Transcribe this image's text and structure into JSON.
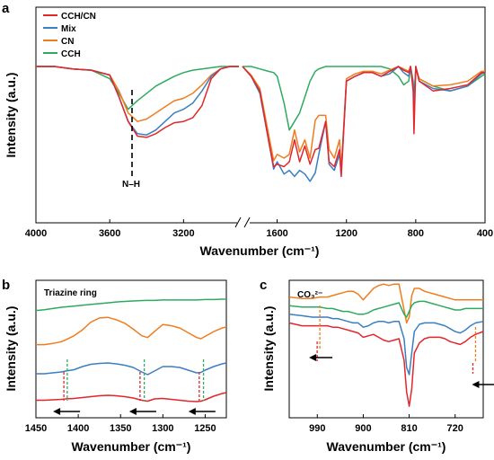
{
  "colors": {
    "CCH/CN": "#e3262b",
    "Mix": "#3a7fc1",
    "CN": "#f07c1d",
    "CCH": "#2eaa5f"
  },
  "chart_data": [
    {
      "panel": "a",
      "type": "line",
      "xlabel": "Wavenumber (cm⁻¹)",
      "ylabel": "Intensity (a.u.)",
      "x_ticks": [
        "4000",
        "3600",
        "3200",
        "1600",
        "1200",
        "800",
        "400"
      ],
      "x_break": [
        2900,
        1800
      ],
      "legend": [
        "CCH/CN",
        "Mix",
        "CN",
        "CCH"
      ],
      "legend_position": "top-left",
      "annotation": "N–H",
      "series": [
        {
          "name": "CCH/CN",
          "x": [
            4000,
            3900,
            3800,
            3700,
            3600,
            3550,
            3500,
            3450,
            3400,
            3350,
            3300,
            3250,
            3200,
            3150,
            3100,
            3050,
            3000,
            2950,
            2900,
            1800,
            1750,
            1700,
            1650,
            1620,
            1600,
            1560,
            1530,
            1500,
            1470,
            1440,
            1410,
            1380,
            1360,
            1320,
            1300,
            1270,
            1240,
            1230,
            1200,
            1150,
            1100,
            1050,
            1000,
            950,
            900,
            870,
            840,
            830,
            815,
            810,
            800,
            780,
            700,
            600,
            500,
            420,
            400
          ],
          "y": [
            100,
            100,
            98,
            97,
            93,
            75,
            55,
            43,
            42,
            45,
            50,
            54,
            55,
            58,
            68,
            90,
            98,
            100,
            100,
            100,
            92,
            80,
            40,
            18,
            20,
            18,
            22,
            40,
            22,
            35,
            20,
            32,
            33,
            55,
            22,
            18,
            32,
            10,
            88,
            92,
            95,
            95,
            92,
            96,
            100,
            97,
            95,
            100,
            80,
            45,
            100,
            88,
            80,
            82,
            85,
            95,
            95
          ]
        },
        {
          "name": "Mix",
          "x": [
            4000,
            3900,
            3800,
            3700,
            3600,
            3550,
            3500,
            3450,
            3400,
            3350,
            3300,
            3250,
            3200,
            3150,
            3100,
            3050,
            3000,
            2950,
            2900,
            1800,
            1750,
            1700,
            1650,
            1620,
            1600,
            1560,
            1530,
            1500,
            1470,
            1440,
            1410,
            1380,
            1360,
            1320,
            1300,
            1270,
            1240,
            1230,
            1200,
            1150,
            1100,
            1050,
            1000,
            950,
            900,
            870,
            840,
            830,
            815,
            810,
            800,
            780,
            700,
            600,
            500,
            420,
            400
          ],
          "y": [
            100,
            100,
            98,
            97,
            93,
            75,
            55,
            45,
            44,
            48,
            55,
            62,
            65,
            70,
            80,
            92,
            98,
            100,
            100,
            100,
            92,
            78,
            40,
            16,
            22,
            12,
            15,
            10,
            15,
            12,
            6,
            13,
            28,
            55,
            20,
            15,
            28,
            12,
            88,
            92,
            95,
            95,
            92,
            94,
            100,
            95,
            92,
            100,
            85,
            65,
            100,
            88,
            82,
            80,
            84,
            94,
            95
          ]
        },
        {
          "name": "CN",
          "x": [
            4000,
            3900,
            3800,
            3700,
            3600,
            3550,
            3500,
            3450,
            3400,
            3350,
            3300,
            3250,
            3200,
            3150,
            3100,
            3050,
            3000,
            2950,
            2900,
            1800,
            1750,
            1700,
            1650,
            1620,
            1600,
            1560,
            1530,
            1500,
            1470,
            1440,
            1410,
            1380,
            1360,
            1320,
            1300,
            1270,
            1240,
            1230,
            1200,
            1150,
            1100,
            1050,
            1000,
            950,
            900,
            870,
            840,
            830,
            815,
            810,
            800,
            780,
            700,
            600,
            500,
            420,
            400
          ],
          "y": [
            100,
            100,
            98,
            97,
            93,
            80,
            62,
            55,
            57,
            62,
            67,
            72,
            74,
            78,
            85,
            93,
            98,
            100,
            100,
            100,
            93,
            82,
            45,
            23,
            28,
            25,
            28,
            48,
            30,
            40,
            25,
            56,
            60,
            60,
            32,
            25,
            40,
            15,
            90,
            94,
            96,
            96,
            94,
            97,
            100,
            98,
            96,
            100,
            85,
            60,
            100,
            90,
            84,
            85,
            88,
            96,
            96
          ]
        },
        {
          "name": "CCH",
          "x": [
            4000,
            3900,
            3800,
            3700,
            3600,
            3550,
            3500,
            3450,
            3400,
            3350,
            3300,
            3250,
            3200,
            3150,
            3100,
            3050,
            3000,
            2950,
            2900,
            1800,
            1750,
            1700,
            1650,
            1620,
            1600,
            1560,
            1530,
            1500,
            1470,
            1440,
            1410,
            1380,
            1360,
            1320,
            1300,
            1270,
            1240,
            1230,
            1200,
            1150,
            1100,
            1050,
            1000,
            950,
            900,
            870,
            840,
            830,
            815,
            810,
            800,
            780,
            700,
            600,
            500,
            420,
            400
          ],
          "y": [
            100,
            100,
            98,
            97,
            90,
            78,
            65,
            72,
            78,
            84,
            88,
            92,
            95,
            97,
            98,
            99,
            100,
            100,
            100,
            100,
            100,
            98,
            96,
            95,
            92,
            70,
            48,
            55,
            62,
            75,
            88,
            96,
            98,
            100,
            100,
            100,
            100,
            100,
            100,
            100,
            100,
            100,
            100,
            98,
            92,
            85,
            88,
            100,
            88,
            75,
            98,
            90,
            84,
            80,
            84,
            92,
            94
          ]
        }
      ]
    },
    {
      "panel": "b",
      "type": "line",
      "annotation": "Triazine ring",
      "xlabel": "Wavenumber (cm⁻¹)",
      "ylabel": "Intensity (a.u.)",
      "x_ticks": [
        "1450",
        "1400",
        "1350",
        "1300",
        "1250"
      ],
      "xlim": [
        1450,
        1225
      ],
      "series": [
        {
          "name": "CCH/CN",
          "x": [
            1450,
            1440,
            1430,
            1420,
            1415,
            1405,
            1395,
            1385,
            1375,
            1365,
            1355,
            1345,
            1335,
            1325,
            1318,
            1310,
            1300,
            1290,
            1280,
            1270,
            1260,
            1255,
            1250,
            1240,
            1230,
            1225
          ],
          "y": [
            5,
            5,
            6,
            7,
            8,
            9,
            11,
            13,
            15,
            16,
            15,
            13,
            10,
            5,
            3,
            8,
            9,
            7,
            5,
            3,
            2,
            3,
            6,
            14,
            20,
            22
          ]
        },
        {
          "name": "Mix",
          "x": [
            1450,
            1440,
            1430,
            1420,
            1415,
            1405,
            1395,
            1385,
            1375,
            1365,
            1355,
            1345,
            1335,
            1325,
            1318,
            1310,
            1300,
            1290,
            1280,
            1270,
            1260,
            1255,
            1250,
            1240,
            1230,
            1225
          ],
          "y": [
            24,
            24,
            26,
            28,
            30,
            33,
            40,
            45,
            47,
            48,
            46,
            43,
            38,
            28,
            22,
            30,
            40,
            40,
            38,
            32,
            26,
            27,
            32,
            40,
            46,
            48
          ]
        },
        {
          "name": "CN",
          "x": [
            1450,
            1440,
            1430,
            1420,
            1415,
            1405,
            1395,
            1385,
            1375,
            1365,
            1355,
            1345,
            1335,
            1325,
            1318,
            1310,
            1300,
            1290,
            1280,
            1270,
            1260,
            1255,
            1250,
            1240,
            1230,
            1225
          ],
          "y": [
            40,
            40,
            42,
            45,
            48,
            55,
            65,
            78,
            85,
            86,
            82,
            76,
            66,
            55,
            52,
            62,
            74,
            72,
            68,
            60,
            52,
            50,
            54,
            62,
            68,
            70
          ]
        },
        {
          "name": "CCH",
          "x": [
            1450,
            1440,
            1430,
            1420,
            1410,
            1400,
            1390,
            1380,
            1370,
            1360,
            1350,
            1340,
            1330,
            1320,
            1310,
            1300,
            1290,
            1280,
            1270,
            1260,
            1250,
            1240,
            1230,
            1225
          ],
          "y": [
            72,
            74,
            77,
            80,
            82,
            84,
            86,
            88,
            90,
            92,
            94,
            95,
            96,
            97,
            97,
            98,
            98,
            98,
            98,
            98,
            99,
            99,
            100,
            100
          ]
        }
      ]
    },
    {
      "panel": "c",
      "type": "line",
      "annotation": "CO₃²⁻",
      "xlabel": "Wavenumber (cm⁻¹)",
      "ylabel": "Intensity (a.u.)",
      "x_ticks": [
        "990",
        "900",
        "810",
        "720"
      ],
      "xlim": [
        1045,
        665
      ],
      "series": [
        {
          "name": "CCH/CN",
          "x": [
            1045,
            1020,
            1000,
            985,
            970,
            960,
            950,
            940,
            930,
            920,
            910,
            900,
            890,
            880,
            870,
            860,
            850,
            840,
            830,
            820,
            815,
            810,
            805,
            800,
            790,
            780,
            770,
            760,
            750,
            740,
            730,
            720,
            710,
            700,
            690,
            680,
            665
          ],
          "y": [
            66,
            64,
            64,
            64,
            64,
            63,
            63,
            62,
            61,
            60,
            59,
            56,
            57,
            58,
            56,
            54,
            53,
            54,
            55,
            40,
            18,
            8,
            20,
            45,
            52,
            55,
            56,
            56,
            56,
            55,
            53,
            52,
            51,
            53,
            56,
            58,
            60
          ]
        },
        {
          "name": "Mix",
          "x": [
            1045,
            1020,
            1000,
            985,
            970,
            960,
            950,
            940,
            930,
            920,
            910,
            900,
            890,
            880,
            870,
            860,
            850,
            840,
            830,
            820,
            815,
            810,
            805,
            800,
            790,
            780,
            770,
            760,
            750,
            740,
            730,
            720,
            710,
            700,
            690,
            680,
            665
          ],
          "y": [
            72,
            71,
            70,
            70,
            70,
            69,
            69,
            68,
            67,
            66,
            66,
            63,
            64,
            66,
            67,
            67,
            66,
            67,
            67,
            55,
            35,
            30,
            45,
            60,
            65,
            66,
            66,
            66,
            65,
            64,
            62,
            60,
            59,
            61,
            64,
            66,
            67
          ]
        },
        {
          "name": "CCH",
          "x": [
            1045,
            1020,
            1000,
            985,
            970,
            960,
            950,
            940,
            930,
            920,
            910,
            900,
            890,
            880,
            870,
            860,
            850,
            840,
            830,
            820,
            815,
            810,
            805,
            800,
            790,
            780,
            770,
            760,
            750,
            740,
            730,
            720,
            710,
            700,
            690,
            680,
            665
          ],
          "y": [
            78,
            77,
            77,
            77,
            76,
            76,
            75,
            74,
            74,
            73,
            72,
            72,
            73,
            75,
            76,
            77,
            78,
            79,
            80,
            72,
            70,
            74,
            78,
            80,
            81,
            81,
            80,
            79,
            78,
            77,
            76,
            75,
            75,
            76,
            76,
            76,
            76
          ]
        },
        {
          "name": "CN",
          "x": [
            1045,
            1020,
            1000,
            985,
            970,
            960,
            950,
            940,
            930,
            920,
            910,
            900,
            890,
            880,
            870,
            860,
            850,
            840,
            830,
            820,
            815,
            810,
            805,
            800,
            790,
            780,
            770,
            760,
            750,
            740,
            730,
            720,
            710,
            700,
            690,
            680,
            665
          ],
          "y": [
            84,
            83,
            83,
            84,
            84,
            85,
            86,
            87,
            88,
            88,
            86,
            82,
            86,
            90,
            92,
            93,
            92,
            93,
            93,
            75,
            66,
            70,
            85,
            90,
            90,
            88,
            87,
            86,
            85,
            84,
            83,
            82,
            82,
            82,
            82,
            82,
            82
          ]
        }
      ]
    }
  ]
}
